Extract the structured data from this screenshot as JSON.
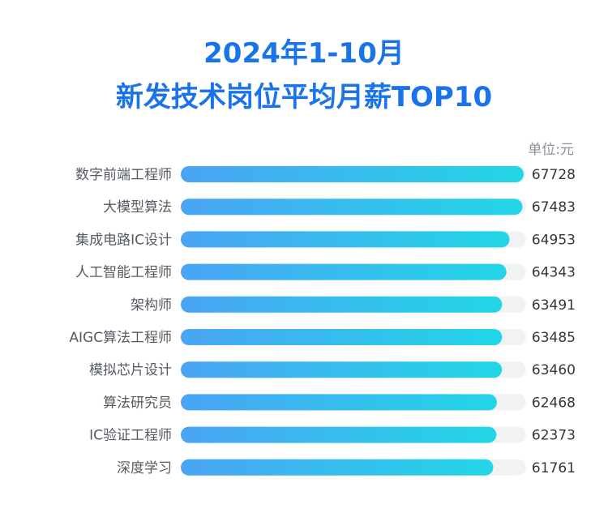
{
  "title_line1": "2024年1-10月",
  "title_line2": "新发技术岗位平均月薪TOP10",
  "unit_label": "单位:元",
  "colors": {
    "title": "#1a73e8",
    "bar_start": "#4aa4f5",
    "bar_end": "#22d6e6",
    "track": "#f1f2f4"
  },
  "chart_data": {
    "type": "bar",
    "orientation": "horizontal",
    "categories": [
      "数字前端工程师",
      "大模型算法",
      "集成电路IC设计",
      "人工智能工程师",
      "架构师",
      "AIGC算法工程师",
      "模拟芯片设计",
      "算法研究员",
      "IC验证工程师",
      "深度学习"
    ],
    "values": [
      67728,
      67483,
      64953,
      64343,
      63491,
      63485,
      63460,
      62468,
      62373,
      61761
    ],
    "title": "2024年1-10月 新发技术岗位平均月薪TOP10",
    "unit": "单位:元",
    "grid": false
  }
}
